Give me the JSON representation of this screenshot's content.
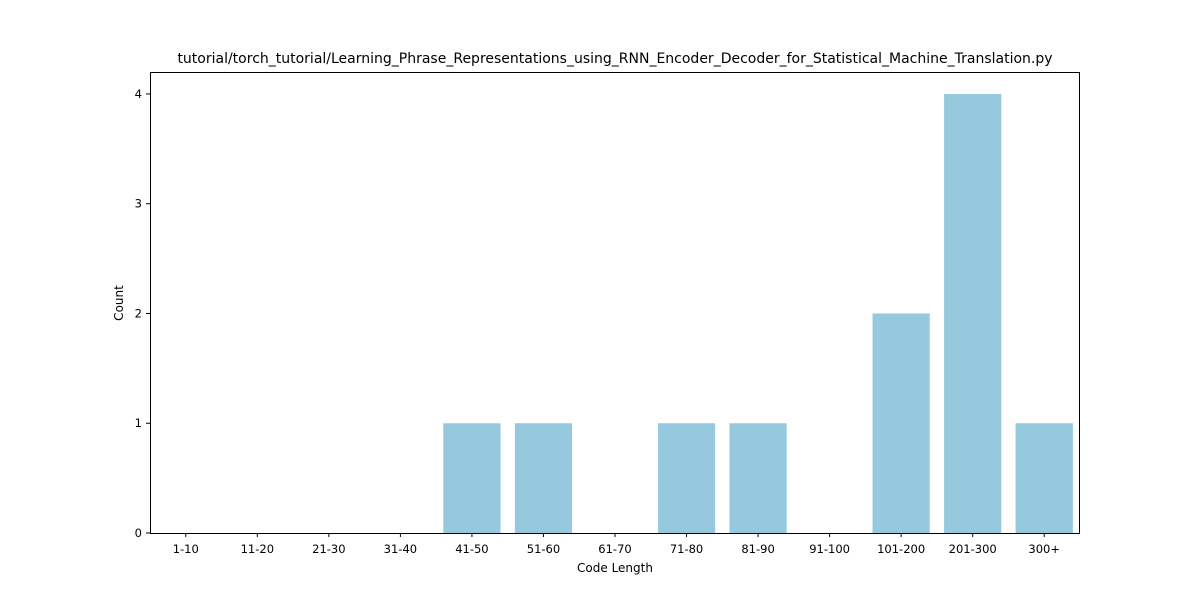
{
  "chart_data": {
    "type": "bar",
    "title": "tutorial/torch_tutorial/Learning_Phrase_Representations_using_RNN_Encoder_Decoder_for_Statistical_Machine_Translation.py",
    "xlabel": "Code Length",
    "ylabel": "Count",
    "categories": [
      "1-10",
      "11-20",
      "21-30",
      "31-40",
      "41-50",
      "51-60",
      "61-70",
      "71-80",
      "81-90",
      "91-100",
      "101-200",
      "201-300",
      "300+"
    ],
    "values": [
      0,
      0,
      0,
      0,
      1,
      1,
      0,
      1,
      1,
      0,
      2,
      4,
      1
    ],
    "ylim": [
      0,
      4.2
    ],
    "yticks": [
      0,
      1,
      2,
      3,
      4
    ],
    "grid": false,
    "legend": "none",
    "bar_color": "#96c9de"
  }
}
